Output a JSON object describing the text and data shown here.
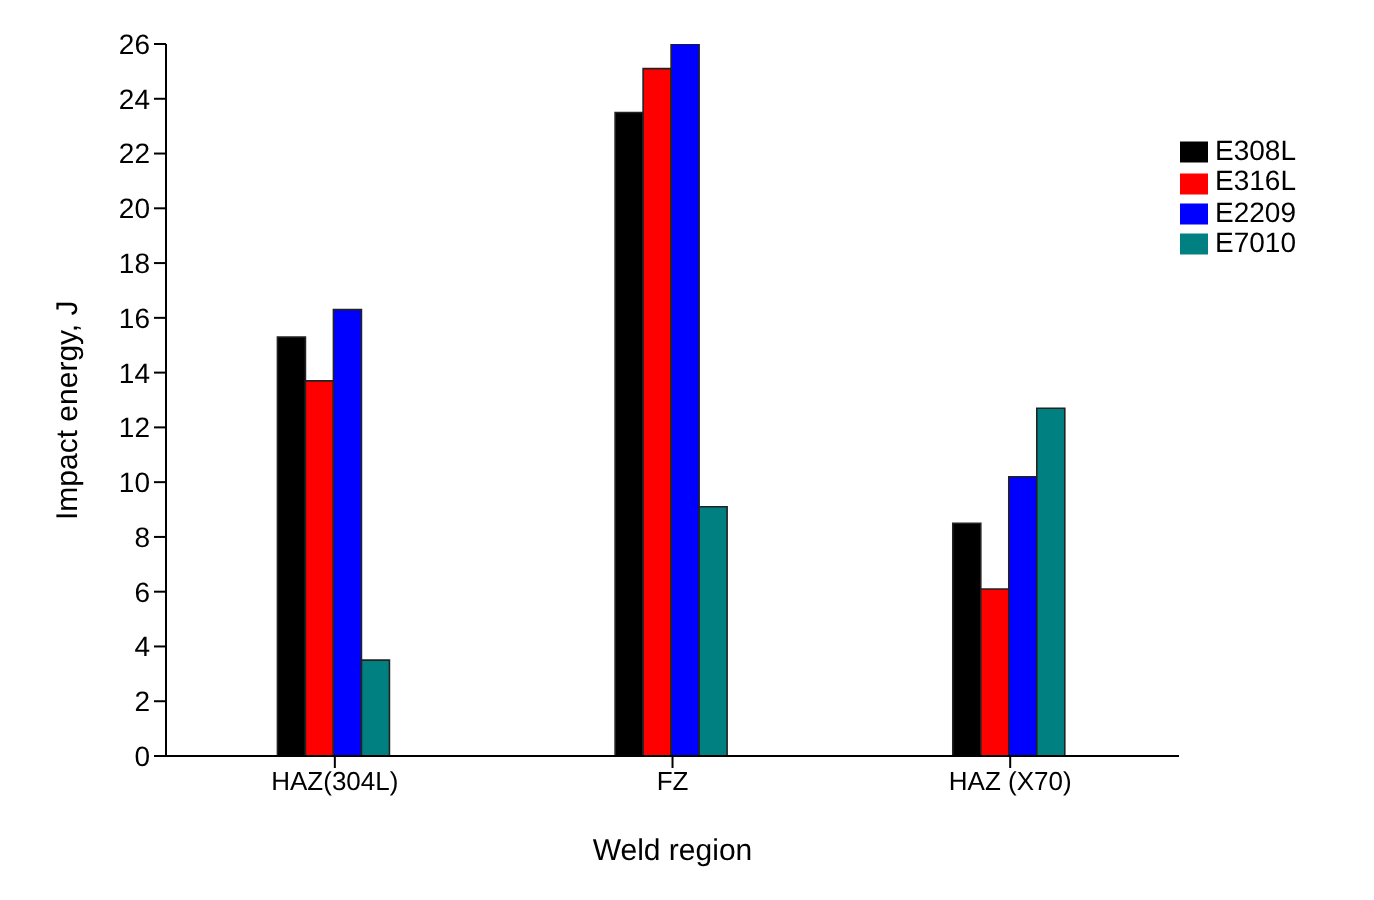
{
  "chart_data": {
    "type": "bar",
    "xlabel": "Weld region",
    "ylabel": "Impact energy, J",
    "categories": [
      "HAZ(304L)",
      "FZ",
      "HAZ (X70)"
    ],
    "series": [
      {
        "name": "E308L",
        "color": "#000000",
        "values": [
          15.3,
          23.5,
          8.5
        ]
      },
      {
        "name": "E316L",
        "color": "#ff0000",
        "values": [
          13.7,
          25.1,
          6.1
        ]
      },
      {
        "name": "E2209",
        "color": "#0000ff",
        "values": [
          16.3,
          26.0,
          10.2
        ]
      },
      {
        "name": "E7010",
        "color": "#008080",
        "values": [
          3.5,
          9.1,
          12.7
        ]
      }
    ],
    "ylim": [
      0,
      26
    ],
    "yticks": [
      0,
      2,
      4,
      6,
      8,
      10,
      12,
      14,
      16,
      18,
      20,
      22,
      24,
      26
    ],
    "grid": false,
    "legend": "top right"
  }
}
